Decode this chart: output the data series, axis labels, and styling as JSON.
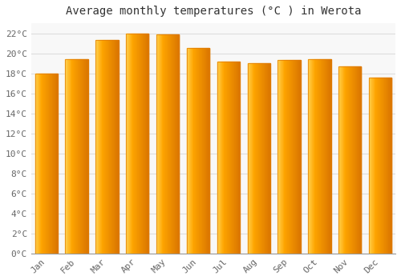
{
  "title": "Average monthly temperatures (°C ) in Werota",
  "months": [
    "Jan",
    "Feb",
    "Mar",
    "Apr",
    "May",
    "Jun",
    "Jul",
    "Aug",
    "Sep",
    "Oct",
    "Nov",
    "Dec"
  ],
  "temperatures": [
    18.0,
    19.4,
    21.3,
    22.0,
    21.9,
    20.5,
    19.2,
    19.0,
    19.3,
    19.4,
    18.7,
    17.6
  ],
  "bar_color_main": "#FFA500",
  "bar_color_light": "#FFD060",
  "bar_color_dark": "#E07800",
  "background_color": "#FFFFFF",
  "plot_bg_color": "#F8F8F8",
  "grid_color": "#DDDDDD",
  "ylim": [
    0,
    23
  ],
  "yticks": [
    0,
    2,
    4,
    6,
    8,
    10,
    12,
    14,
    16,
    18,
    20,
    22
  ],
  "title_fontsize": 10,
  "tick_fontsize": 8,
  "tick_font_family": "monospace",
  "title_font_family": "monospace",
  "title_color": "#333333",
  "tick_color": "#666666"
}
